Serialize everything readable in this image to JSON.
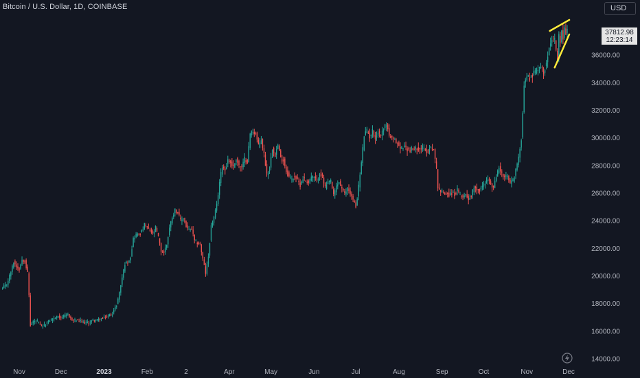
{
  "header": {
    "symbol_title": "Bitcoin / U.S. Dollar, 1D, COINBASE",
    "currency_button": "USD"
  },
  "last_price": {
    "value": "37812.98",
    "countdown": "12:23:14"
  },
  "colors": {
    "background": "#131722",
    "up": "#26a69a",
    "down": "#ef5350",
    "trendline": "#ffeb3b",
    "axis_text": "#b2b5be"
  },
  "icons": {
    "bolt": "lightning-bolt-icon"
  },
  "chart_data": {
    "type": "candlestick",
    "title": "Bitcoin / U.S. Dollar, 1D, COINBASE",
    "ylim": [
      14000,
      38400
    ],
    "y_ticks": [
      "14000.00",
      "16000.00",
      "18000.00",
      "20000.00",
      "22000.00",
      "24000.00",
      "26000.00",
      "28000.00",
      "30000.00",
      "32000.00",
      "34000.00",
      "36000.00"
    ],
    "x_ticks": [
      {
        "label": "Nov",
        "bold": false,
        "day": 0
      },
      {
        "label": "Dec",
        "bold": false,
        "day": 30
      },
      {
        "label": "2023",
        "bold": true,
        "day": 61
      },
      {
        "label": "Feb",
        "bold": false,
        "day": 92
      },
      {
        "label": "2",
        "bold": false,
        "day": 120
      },
      {
        "label": "Apr",
        "bold": false,
        "day": 151
      },
      {
        "label": "May",
        "bold": false,
        "day": 181
      },
      {
        "label": "Jun",
        "bold": false,
        "day": 212
      },
      {
        "label": "Jul",
        "bold": false,
        "day": 242
      },
      {
        "label": "Aug",
        "bold": false,
        "day": 273
      },
      {
        "label": "Sep",
        "bold": false,
        "day": 304
      },
      {
        "label": "Oct",
        "bold": false,
        "day": 334
      },
      {
        "label": "Nov",
        "bold": false,
        "day": 365
      },
      {
        "label": "Dec",
        "bold": false,
        "day": 395
      }
    ],
    "x_range_days": [
      -12,
      395
    ],
    "close_anchors": [
      [
        -12,
        19100
      ],
      [
        -9,
        19400
      ],
      [
        -6,
        20300
      ],
      [
        -4,
        21000
      ],
      [
        -2,
        20700
      ],
      [
        0,
        20500
      ],
      [
        2,
        21200
      ],
      [
        4,
        21100
      ],
      [
        6,
        20200
      ],
      [
        7,
        18600
      ],
      [
        8,
        16400
      ],
      [
        10,
        16700
      ],
      [
        13,
        16700
      ],
      [
        16,
        16300
      ],
      [
        19,
        16500
      ],
      [
        22,
        16800
      ],
      [
        25,
        16900
      ],
      [
        28,
        17100
      ],
      [
        30,
        17000
      ],
      [
        33,
        17100
      ],
      [
        35,
        17200
      ],
      [
        38,
        16800
      ],
      [
        41,
        16800
      ],
      [
        44,
        16700
      ],
      [
        47,
        16600
      ],
      [
        50,
        16600
      ],
      [
        53,
        16800
      ],
      [
        56,
        16800
      ],
      [
        59,
        16900
      ],
      [
        61,
        16950
      ],
      [
        64,
        17100
      ],
      [
        67,
        17300
      ],
      [
        70,
        17900
      ],
      [
        72,
        18800
      ],
      [
        74,
        19900
      ],
      [
        76,
        20900
      ],
      [
        78,
        21000
      ],
      [
        80,
        21400
      ],
      [
        82,
        22700
      ],
      [
        84,
        23000
      ],
      [
        86,
        23000
      ],
      [
        88,
        23200
      ],
      [
        90,
        23700
      ],
      [
        92,
        23500
      ],
      [
        94,
        23300
      ],
      [
        96,
        23000
      ],
      [
        98,
        23500
      ],
      [
        100,
        22800
      ],
      [
        102,
        21800
      ],
      [
        104,
        21700
      ],
      [
        106,
        22300
      ],
      [
        108,
        23500
      ],
      [
        110,
        24300
      ],
      [
        112,
        24800
      ],
      [
        114,
        24600
      ],
      [
        116,
        24000
      ],
      [
        118,
        24200
      ],
      [
        120,
        23600
      ],
      [
        122,
        23300
      ],
      [
        124,
        23400
      ],
      [
        126,
        22500
      ],
      [
        128,
        22400
      ],
      [
        130,
        22300
      ],
      [
        132,
        21200
      ],
      [
        134,
        20200
      ],
      [
        136,
        21400
      ],
      [
        138,
        23600
      ],
      [
        140,
        24200
      ],
      [
        142,
        25100
      ],
      [
        144,
        26800
      ],
      [
        146,
        28000
      ],
      [
        148,
        27700
      ],
      [
        150,
        28400
      ],
      [
        152,
        28200
      ],
      [
        154,
        27900
      ],
      [
        156,
        28500
      ],
      [
        158,
        28000
      ],
      [
        160,
        27800
      ],
      [
        162,
        28500
      ],
      [
        164,
        28300
      ],
      [
        166,
        30300
      ],
      [
        168,
        30500
      ],
      [
        170,
        30300
      ],
      [
        172,
        29400
      ],
      [
        174,
        29900
      ],
      [
        176,
        28800
      ],
      [
        178,
        27400
      ],
      [
        180,
        27800
      ],
      [
        182,
        29300
      ],
      [
        184,
        28800
      ],
      [
        186,
        29500
      ],
      [
        188,
        28500
      ],
      [
        190,
        28400
      ],
      [
        192,
        27600
      ],
      [
        194,
        27200
      ],
      [
        196,
        27000
      ],
      [
        198,
        27300
      ],
      [
        200,
        26900
      ],
      [
        202,
        26600
      ],
      [
        204,
        27100
      ],
      [
        206,
        26900
      ],
      [
        208,
        26800
      ],
      [
        210,
        27200
      ],
      [
        212,
        27100
      ],
      [
        214,
        26900
      ],
      [
        216,
        27500
      ],
      [
        218,
        27100
      ],
      [
        220,
        26400
      ],
      [
        222,
        26700
      ],
      [
        224,
        26900
      ],
      [
        226,
        25800
      ],
      [
        228,
        26500
      ],
      [
        230,
        26800
      ],
      [
        232,
        26300
      ],
      [
        234,
        25900
      ],
      [
        236,
        26400
      ],
      [
        238,
        26000
      ],
      [
        240,
        25500
      ],
      [
        242,
        25000
      ],
      [
        244,
        26500
      ],
      [
        246,
        28200
      ],
      [
        248,
        30200
      ],
      [
        250,
        30500
      ],
      [
        252,
        30100
      ],
      [
        254,
        30500
      ],
      [
        256,
        30000
      ],
      [
        258,
        30400
      ],
      [
        260,
        30200
      ],
      [
        262,
        30700
      ],
      [
        264,
        31000
      ],
      [
        266,
        30200
      ],
      [
        268,
        29900
      ],
      [
        270,
        29800
      ],
      [
        272,
        29600
      ],
      [
        274,
        29200
      ],
      [
        276,
        29400
      ],
      [
        278,
        29300
      ],
      [
        280,
        29100
      ],
      [
        282,
        29200
      ],
      [
        284,
        29100
      ],
      [
        286,
        29300
      ],
      [
        288,
        29200
      ],
      [
        290,
        29300
      ],
      [
        292,
        29100
      ],
      [
        294,
        29000
      ],
      [
        296,
        29400
      ],
      [
        298,
        29100
      ],
      [
        300,
        27700
      ],
      [
        301,
        26500
      ],
      [
        303,
        26100
      ],
      [
        305,
        26000
      ],
      [
        307,
        26000
      ],
      [
        309,
        25900
      ],
      [
        311,
        26000
      ],
      [
        313,
        25900
      ],
      [
        315,
        26200
      ],
      [
        317,
        25800
      ],
      [
        319,
        25800
      ],
      [
        321,
        25900
      ],
      [
        323,
        25600
      ],
      [
        325,
        25800
      ],
      [
        327,
        26500
      ],
      [
        329,
        26300
      ],
      [
        331,
        26200
      ],
      [
        333,
        26500
      ],
      [
        335,
        26800
      ],
      [
        337,
        27000
      ],
      [
        339,
        26600
      ],
      [
        341,
        26400
      ],
      [
        343,
        27200
      ],
      [
        345,
        27900
      ],
      [
        347,
        27400
      ],
      [
        349,
        27100
      ],
      [
        351,
        27200
      ],
      [
        353,
        26700
      ],
      [
        355,
        26900
      ],
      [
        357,
        27700
      ],
      [
        359,
        28500
      ],
      [
        361,
        30000
      ],
      [
        363,
        33900
      ],
      [
        365,
        34500
      ],
      [
        367,
        34300
      ],
      [
        369,
        34600
      ],
      [
        371,
        34800
      ],
      [
        373,
        35100
      ],
      [
        375,
        35200
      ],
      [
        377,
        34700
      ],
      [
        379,
        35500
      ],
      [
        381,
        36700
      ],
      [
        383,
        37300
      ],
      [
        385,
        37000
      ],
      [
        386,
        36200
      ],
      [
        387,
        35600
      ],
      [
        388,
        37300
      ],
      [
        389,
        36900
      ],
      [
        390,
        37700
      ],
      [
        391,
        37300
      ],
      [
        392,
        37800
      ],
      [
        393,
        37700
      ],
      [
        394,
        37813
      ]
    ],
    "annotations": [
      {
        "type": "trendline",
        "name": "upper",
        "from": [
          381.5,
          37750
        ],
        "to": [
          395.5,
          38550
        ]
      },
      {
        "type": "trendline",
        "name": "lower",
        "from": [
          385,
          35100
        ],
        "to": [
          395.5,
          37500
        ]
      }
    ]
  }
}
